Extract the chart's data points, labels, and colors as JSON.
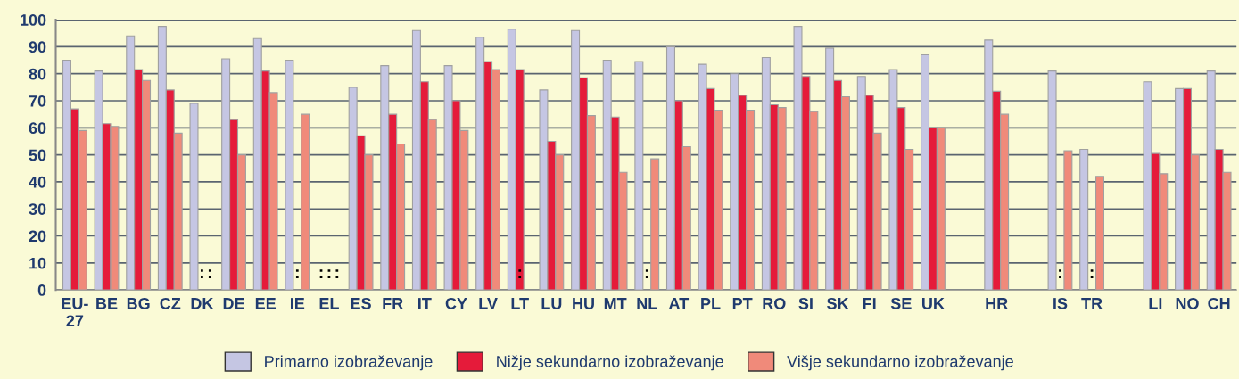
{
  "chart_data": {
    "type": "bar",
    "categories": [
      "EU-\n27",
      "BE",
      "BG",
      "CZ",
      "DK",
      "DE",
      "EE",
      "IE",
      "EL",
      "ES",
      "FR",
      "IT",
      "CY",
      "LV",
      "LT",
      "LU",
      "HU",
      "MT",
      "NL",
      "AT",
      "PL",
      "PT",
      "RO",
      "SI",
      "SK",
      "FI",
      "SE",
      "UK",
      null,
      "HR",
      null,
      "IS",
      "TR",
      null,
      "LI",
      "NO",
      "CH"
    ],
    "series": [
      {
        "name": "Primarno izobraževanje",
        "color": "#c5c6e3",
        "values": [
          85,
          81,
          94,
          97.5,
          69,
          85.5,
          93,
          85,
          null,
          75,
          83,
          96,
          83,
          93.5,
          96.5,
          74,
          96,
          85,
          84.5,
          90,
          83.5,
          80,
          86,
          97.5,
          89.5,
          79,
          81.5,
          87,
          null,
          92.5,
          null,
          81,
          52,
          null,
          77,
          74.5,
          81
        ],
        "value_labels": [
          null,
          null,
          null,
          null,
          null,
          null,
          null,
          null,
          ":",
          null,
          null,
          null,
          null,
          null,
          null,
          null,
          null,
          null,
          null,
          null,
          null,
          null,
          null,
          null,
          null,
          null,
          null,
          null,
          null,
          null,
          null,
          null,
          null,
          null,
          null,
          null,
          null
        ]
      },
      {
        "name": "Nižje sekundarno izobraževanje",
        "color": "#e51b3a",
        "values": [
          67,
          61.5,
          81.5,
          74,
          null,
          63,
          81,
          null,
          null,
          57,
          65,
          77,
          70,
          84.5,
          81.5,
          55,
          78.5,
          64,
          null,
          70,
          74.5,
          72,
          68.5,
          79,
          77.5,
          72,
          67.5,
          60,
          null,
          73.5,
          null,
          null,
          null,
          null,
          50.5,
          74.5,
          52
        ],
        "value_labels": [
          null,
          null,
          null,
          null,
          ":",
          null,
          null,
          ":",
          ":",
          null,
          null,
          null,
          null,
          null,
          ":",
          null,
          null,
          null,
          ":",
          null,
          null,
          null,
          null,
          null,
          null,
          null,
          null,
          null,
          null,
          null,
          null,
          ":",
          ":",
          null,
          null,
          null,
          null
        ]
      },
      {
        "name": "Višje sekundarno izobraževanje",
        "color": "#f08a7a",
        "values": [
          59,
          60.5,
          77.5,
          58,
          null,
          50,
          73,
          65,
          null,
          50,
          54,
          63,
          59,
          81.5,
          null,
          50,
          64.5,
          43.5,
          48.5,
          53,
          66.5,
          66.5,
          67.5,
          66,
          71.5,
          58,
          52,
          60,
          null,
          65,
          null,
          51.5,
          42,
          null,
          43,
          50,
          43.5
        ],
        "value_labels": [
          null,
          null,
          null,
          null,
          ":",
          null,
          null,
          null,
          ":",
          null,
          null,
          null,
          null,
          null,
          null,
          null,
          null,
          null,
          null,
          null,
          null,
          null,
          null,
          null,
          null,
          null,
          null,
          null,
          null,
          null,
          null,
          null,
          null,
          null,
          null,
          null,
          null
        ]
      }
    ],
    "ylim": [
      0,
      100
    ],
    "yticks": [
      0,
      10,
      20,
      30,
      40,
      50,
      60,
      70,
      80,
      90,
      100
    ],
    "grid": "y",
    "legend": "bottom"
  }
}
